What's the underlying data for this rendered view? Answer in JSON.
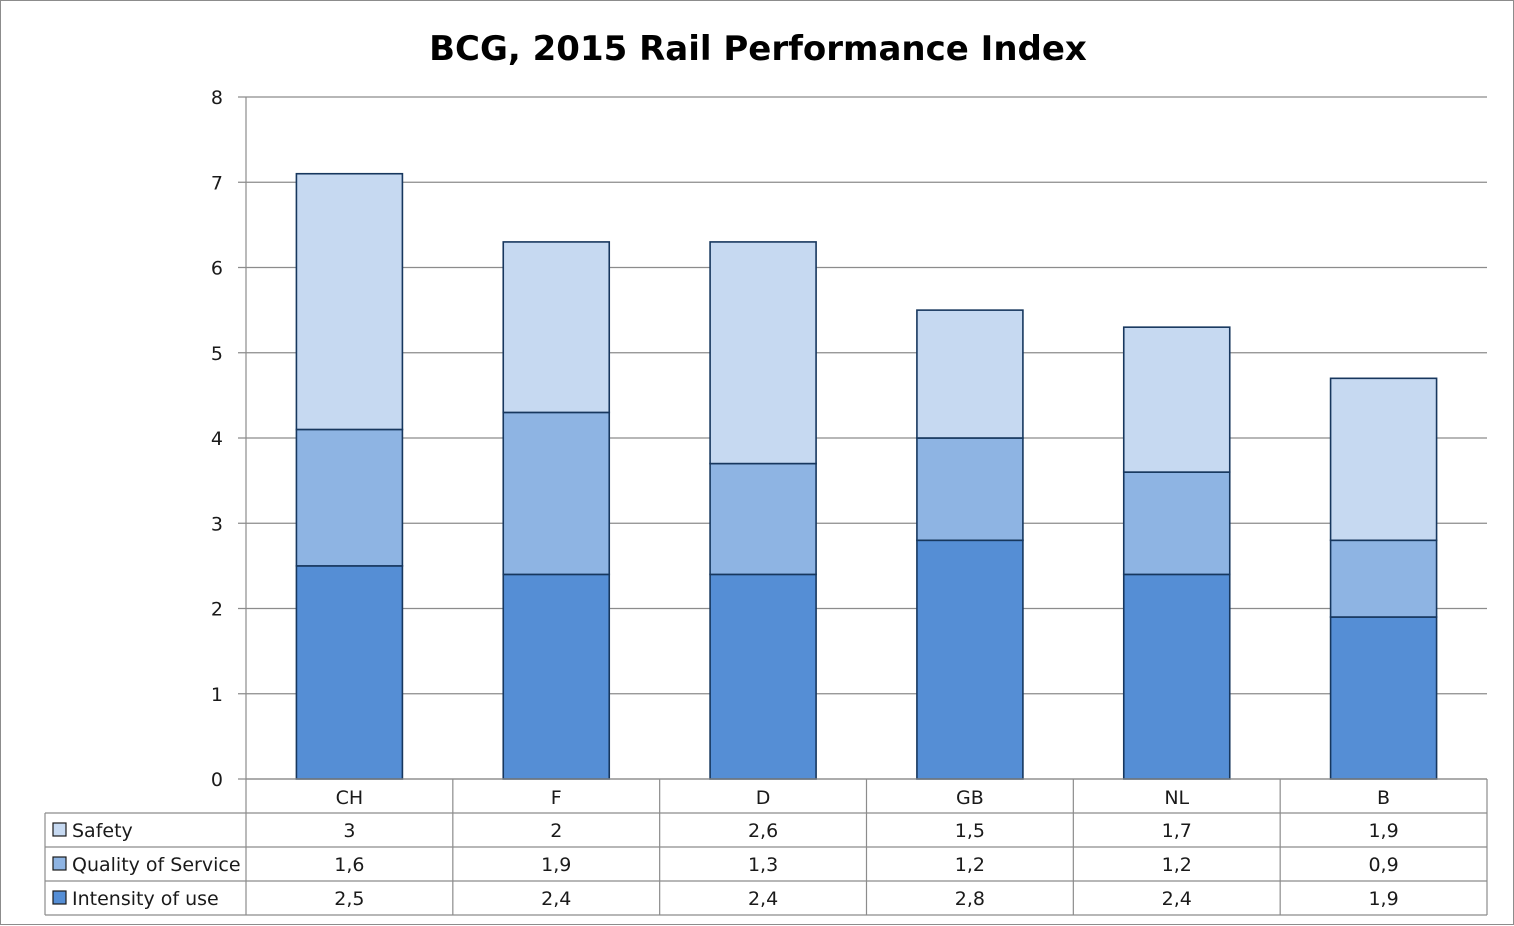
{
  "chart_data": {
    "type": "bar",
    "stacked": true,
    "title": "BCG, 2015 Rail Performance Index",
    "categories": [
      "CH",
      "F",
      "D",
      "GB",
      "NL",
      "B"
    ],
    "series": [
      {
        "name": "Intensity of use",
        "values": [
          2.5,
          2.4,
          2.4,
          2.8,
          2.4,
          1.9
        ],
        "labels": [
          "2,5",
          "2,4",
          "2,4",
          "2,8",
          "2,4",
          "1,9"
        ],
        "color": "#558ed5"
      },
      {
        "name": "Quality of Service",
        "values": [
          1.6,
          1.9,
          1.3,
          1.2,
          1.2,
          0.9
        ],
        "labels": [
          "1,6",
          "1,9",
          "1,3",
          "1,2",
          "1,2",
          "0,9"
        ],
        "color": "#8eb4e3"
      },
      {
        "name": "Safety",
        "values": [
          3,
          2,
          2.6,
          1.5,
          1.7,
          1.9
        ],
        "labels": [
          "3",
          "2",
          "2,6",
          "1,5",
          "1,7",
          "1,9"
        ],
        "color": "#c6d9f1"
      }
    ],
    "ylim": [
      0,
      8
    ],
    "yticks": [
      "0",
      "1",
      "2",
      "3",
      "4",
      "5",
      "6",
      "7",
      "8"
    ],
    "grid": true,
    "legend": "data-table",
    "table_row_order": [
      "Safety",
      "Quality of Service",
      "Intensity of use"
    ],
    "bar_edge_color": "#17375e",
    "grid_color": "#8c8c8c"
  }
}
